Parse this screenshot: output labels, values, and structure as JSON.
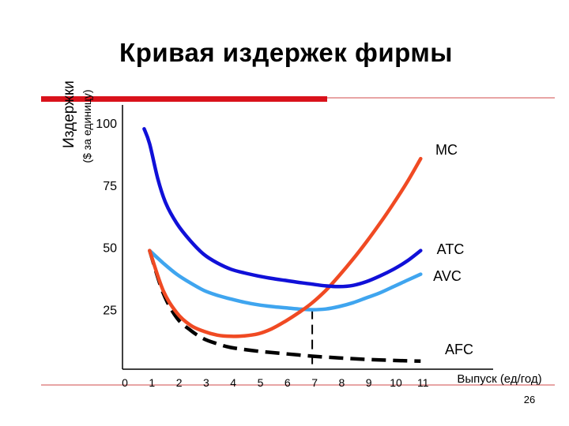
{
  "slide": {
    "page_number": "26",
    "colors": {
      "accent_bar": "#d9121b",
      "rule_line": "#d24b4b"
    }
  },
  "chart_data": {
    "type": "line",
    "title": "Кривая издержек фирмы",
    "ylabel": "Издержки",
    "ylabel_sub": "($ за единицу)",
    "xlabel": "Выпуск (ед/год)",
    "xlim": [
      0,
      11
    ],
    "ylim": [
      0,
      100
    ],
    "x_ticks": [
      0,
      1,
      2,
      3,
      4,
      5,
      6,
      7,
      8,
      9,
      10,
      11
    ],
    "y_ticks": [
      100,
      75,
      50,
      25
    ],
    "guide_x": 7,
    "series": [
      {
        "name": "MC",
        "color": "#f04a23",
        "dash": false,
        "points": [
          [
            1,
            49
          ],
          [
            1.5,
            33
          ],
          [
            2,
            24
          ],
          [
            2.5,
            19
          ],
          [
            3,
            16.5
          ],
          [
            3.5,
            15
          ],
          [
            4,
            14.5
          ],
          [
            4.5,
            14.7
          ],
          [
            5,
            15.5
          ],
          [
            5.5,
            17.5
          ],
          [
            6,
            20.5
          ],
          [
            6.5,
            24
          ],
          [
            7,
            28
          ],
          [
            7.5,
            33
          ],
          [
            8,
            39
          ],
          [
            8.5,
            45.5
          ],
          [
            9,
            52.5
          ],
          [
            9.5,
            60
          ],
          [
            10,
            68
          ],
          [
            10.5,
            76.5
          ],
          [
            11,
            86
          ]
        ]
      },
      {
        "name": "ATC",
        "color": "#1010d8",
        "dash": false,
        "points": [
          [
            0.8,
            98
          ],
          [
            1,
            92
          ],
          [
            1.3,
            78
          ],
          [
            1.6,
            68
          ],
          [
            2,
            60
          ],
          [
            2.5,
            53
          ],
          [
            3,
            47.5
          ],
          [
            3.5,
            44
          ],
          [
            4,
            41.5
          ],
          [
            4.5,
            40
          ],
          [
            5,
            38.8
          ],
          [
            5.5,
            37.8
          ],
          [
            6,
            37
          ],
          [
            6.5,
            36.2
          ],
          [
            7,
            35.5
          ],
          [
            7.5,
            34.8
          ],
          [
            8,
            34.5
          ],
          [
            8.5,
            35
          ],
          [
            9,
            36.5
          ],
          [
            9.5,
            38.8
          ],
          [
            10,
            41.5
          ],
          [
            10.5,
            44.8
          ],
          [
            11,
            49
          ]
        ]
      },
      {
        "name": "AVC",
        "color": "#3fa5ef",
        "dash": false,
        "points": [
          [
            1,
            49
          ],
          [
            1.5,
            44
          ],
          [
            2,
            39.5
          ],
          [
            2.5,
            36
          ],
          [
            3,
            33
          ],
          [
            3.5,
            31
          ],
          [
            4,
            29.5
          ],
          [
            4.5,
            28.2
          ],
          [
            5,
            27.2
          ],
          [
            5.5,
            26.5
          ],
          [
            6,
            26
          ],
          [
            6.5,
            25.5
          ],
          [
            7,
            25.2
          ],
          [
            7.5,
            25.5
          ],
          [
            8,
            26.5
          ],
          [
            8.5,
            28
          ],
          [
            9,
            30
          ],
          [
            9.5,
            32
          ],
          [
            10,
            34.5
          ],
          [
            10.5,
            37
          ],
          [
            11,
            39.5
          ]
        ]
      },
      {
        "name": "AFC",
        "color": "#000000",
        "dash": true,
        "points": [
          [
            1,
            49
          ],
          [
            1.5,
            32
          ],
          [
            2,
            22
          ],
          [
            2.5,
            17
          ],
          [
            3,
            13.5
          ],
          [
            3.5,
            11.5
          ],
          [
            4,
            10
          ],
          [
            5,
            8.5
          ],
          [
            6,
            7.5
          ],
          [
            7,
            6.5
          ],
          [
            8,
            5.8
          ],
          [
            9,
            5.2
          ],
          [
            10,
            4.8
          ],
          [
            11,
            4.5
          ]
        ]
      }
    ]
  }
}
